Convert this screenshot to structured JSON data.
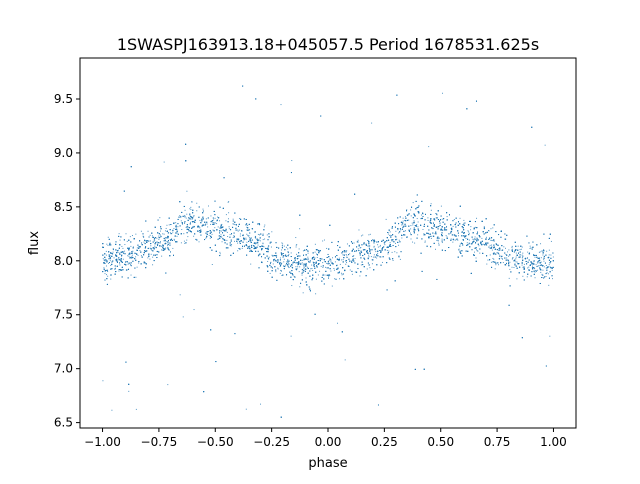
{
  "chart_data": {
    "type": "scatter",
    "title": "1SWASPJ163913.18+045057.5 Period 1678531.625s",
    "xlabel": "phase",
    "ylabel": "flux",
    "xlim": [
      -1.1,
      1.1
    ],
    "ylim": [
      6.45,
      9.88
    ],
    "grid": false,
    "legend": "none",
    "marker_color": "#1f77b4",
    "x_ticks": [
      {
        "value": -1.0,
        "label": "−1.00"
      },
      {
        "value": -0.75,
        "label": "−0.75"
      },
      {
        "value": -0.5,
        "label": "−0.50"
      },
      {
        "value": -0.25,
        "label": "−0.25"
      },
      {
        "value": 0.0,
        "label": "0.00"
      },
      {
        "value": 0.25,
        "label": "0.25"
      },
      {
        "value": 0.5,
        "label": "0.50"
      },
      {
        "value": 0.75,
        "label": "0.75"
      },
      {
        "value": 1.0,
        "label": "1.00"
      }
    ],
    "y_ticks": [
      {
        "value": 6.5,
        "label": "6.5"
      },
      {
        "value": 7.0,
        "label": "7.0"
      },
      {
        "value": 7.5,
        "label": "7.5"
      },
      {
        "value": 8.0,
        "label": "8.0"
      },
      {
        "value": 8.5,
        "label": "8.5"
      },
      {
        "value": 9.0,
        "label": "9.0"
      },
      {
        "value": 9.5,
        "label": "9.5"
      }
    ],
    "series": [
      {
        "x": [
          -1.0,
          -0.95,
          -0.9,
          -0.85,
          -0.8,
          -0.75,
          -0.7,
          -0.65,
          -0.6,
          -0.55,
          -0.5,
          -0.45,
          -0.4,
          -0.35,
          -0.3,
          -0.25,
          -0.2,
          -0.15,
          -0.1,
          -0.05,
          0.0,
          0.05,
          0.1,
          0.15,
          0.2,
          0.25,
          0.3,
          0.35,
          0.4,
          0.45,
          0.5,
          0.55,
          0.6,
          0.65,
          0.7,
          0.75,
          0.8,
          0.85,
          0.9,
          0.95,
          1.0
        ],
        "y": [
          8.0,
          8.02,
          8.05,
          8.08,
          8.12,
          8.15,
          8.2,
          8.35,
          8.38,
          8.33,
          8.3,
          8.28,
          8.25,
          8.2,
          8.15,
          8.05,
          8.0,
          7.98,
          7.95,
          7.95,
          7.97,
          8.0,
          8.02,
          8.05,
          8.1,
          8.15,
          8.2,
          8.35,
          8.38,
          8.33,
          8.3,
          8.28,
          8.25,
          8.2,
          8.15,
          8.1,
          8.05,
          8.02,
          8.0,
          7.97,
          7.98
        ],
        "spread": [
          0.25,
          0.25,
          0.25,
          0.25,
          0.25,
          0.25,
          0.25,
          0.25,
          0.25,
          0.25,
          0.28,
          0.28,
          0.27,
          0.27,
          0.27,
          0.26,
          0.26,
          0.26,
          0.27,
          0.27,
          0.27,
          0.25,
          0.25,
          0.25,
          0.25,
          0.25,
          0.25,
          0.25,
          0.25,
          0.25,
          0.28,
          0.28,
          0.27,
          0.27,
          0.27,
          0.26,
          0.26,
          0.26,
          0.27,
          0.27,
          0.27
        ]
      }
    ]
  }
}
